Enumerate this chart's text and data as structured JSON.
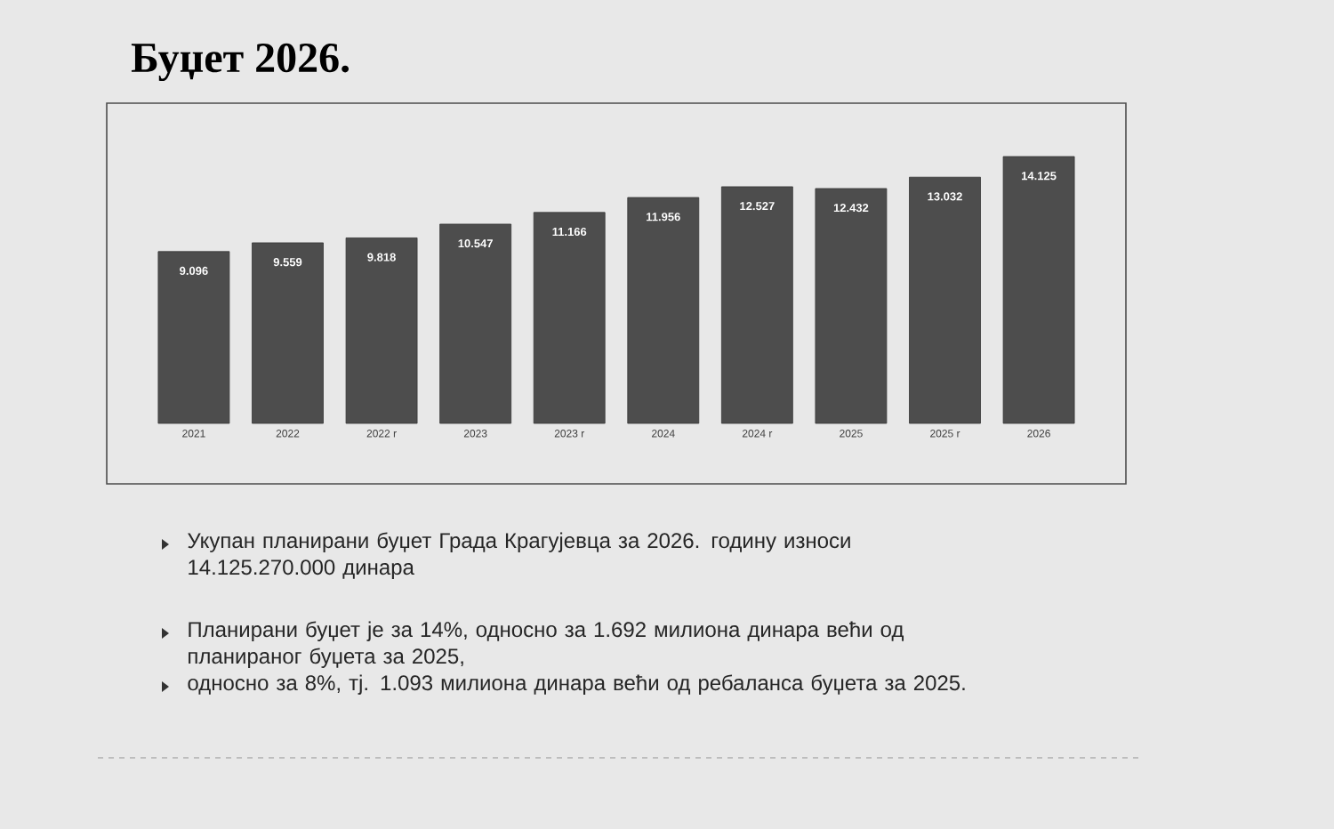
{
  "chart_data": {
    "type": "bar",
    "title": "Буџет 2026.",
    "categories": [
      "2021",
      "2022",
      "2022 r",
      "2023",
      "2023 r",
      "2024",
      "2024 r",
      "2025",
      "2025 r",
      "2026"
    ],
    "values": [
      9096,
      9559,
      9818,
      10547,
      11166,
      11956,
      12527,
      12432,
      13032,
      14125
    ],
    "value_labels": [
      "9.096",
      "9.559",
      "9.818",
      "10.547",
      "11.166",
      "11.956",
      "12.527",
      "12.432",
      "13.032",
      "14.125"
    ],
    "color": "#4d4d4d",
    "annotations": [
      "Укупан планирани буџет Града Крагујевца за 2026. годину износи 14.125.270.000 динара",
      "Планирани буџет је за 14%, односно за 1.692 милиона динара већи од планираног буџета за 2025,",
      "односно за 8%, тј. 1.093 милиона динара већи од ребаланса буџета за 2025."
    ]
  }
}
